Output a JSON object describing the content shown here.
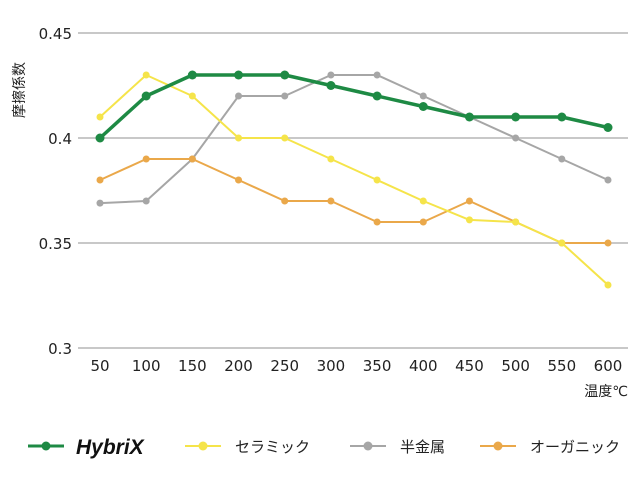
{
  "chart_data": {
    "type": "line",
    "xlabel": "温度℃",
    "ylabel": "摩擦係数",
    "x": [
      50,
      100,
      150,
      200,
      250,
      300,
      350,
      400,
      450,
      500,
      550,
      600
    ],
    "ylim": [
      0.3,
      0.45
    ],
    "yticks": [
      "0.3",
      "0.35",
      "0.4",
      "0.45"
    ],
    "grid": true,
    "legend_position": "bottom",
    "series": [
      {
        "name": "HybriX",
        "color": "#1e8a44",
        "values": [
          0.4,
          0.42,
          0.43,
          0.43,
          0.43,
          0.425,
          0.42,
          0.415,
          0.41,
          0.41,
          0.41,
          0.405
        ]
      },
      {
        "name": "セラミック",
        "color": "#f5e44a",
        "values": [
          0.41,
          0.43,
          0.42,
          0.4,
          0.4,
          0.39,
          0.38,
          0.37,
          0.361,
          0.36,
          0.35,
          0.33
        ]
      },
      {
        "name": "半金属",
        "color": "#a6a6a6",
        "values": [
          0.369,
          0.37,
          0.39,
          0.42,
          0.42,
          0.43,
          0.43,
          0.42,
          0.41,
          0.4,
          0.39,
          0.38
        ]
      },
      {
        "name": "オーガニック",
        "color": "#eaa84a",
        "values": [
          0.38,
          0.39,
          0.39,
          0.38,
          0.37,
          0.37,
          0.36,
          0.36,
          0.37,
          0.36,
          0.35,
          0.35
        ]
      }
    ]
  }
}
